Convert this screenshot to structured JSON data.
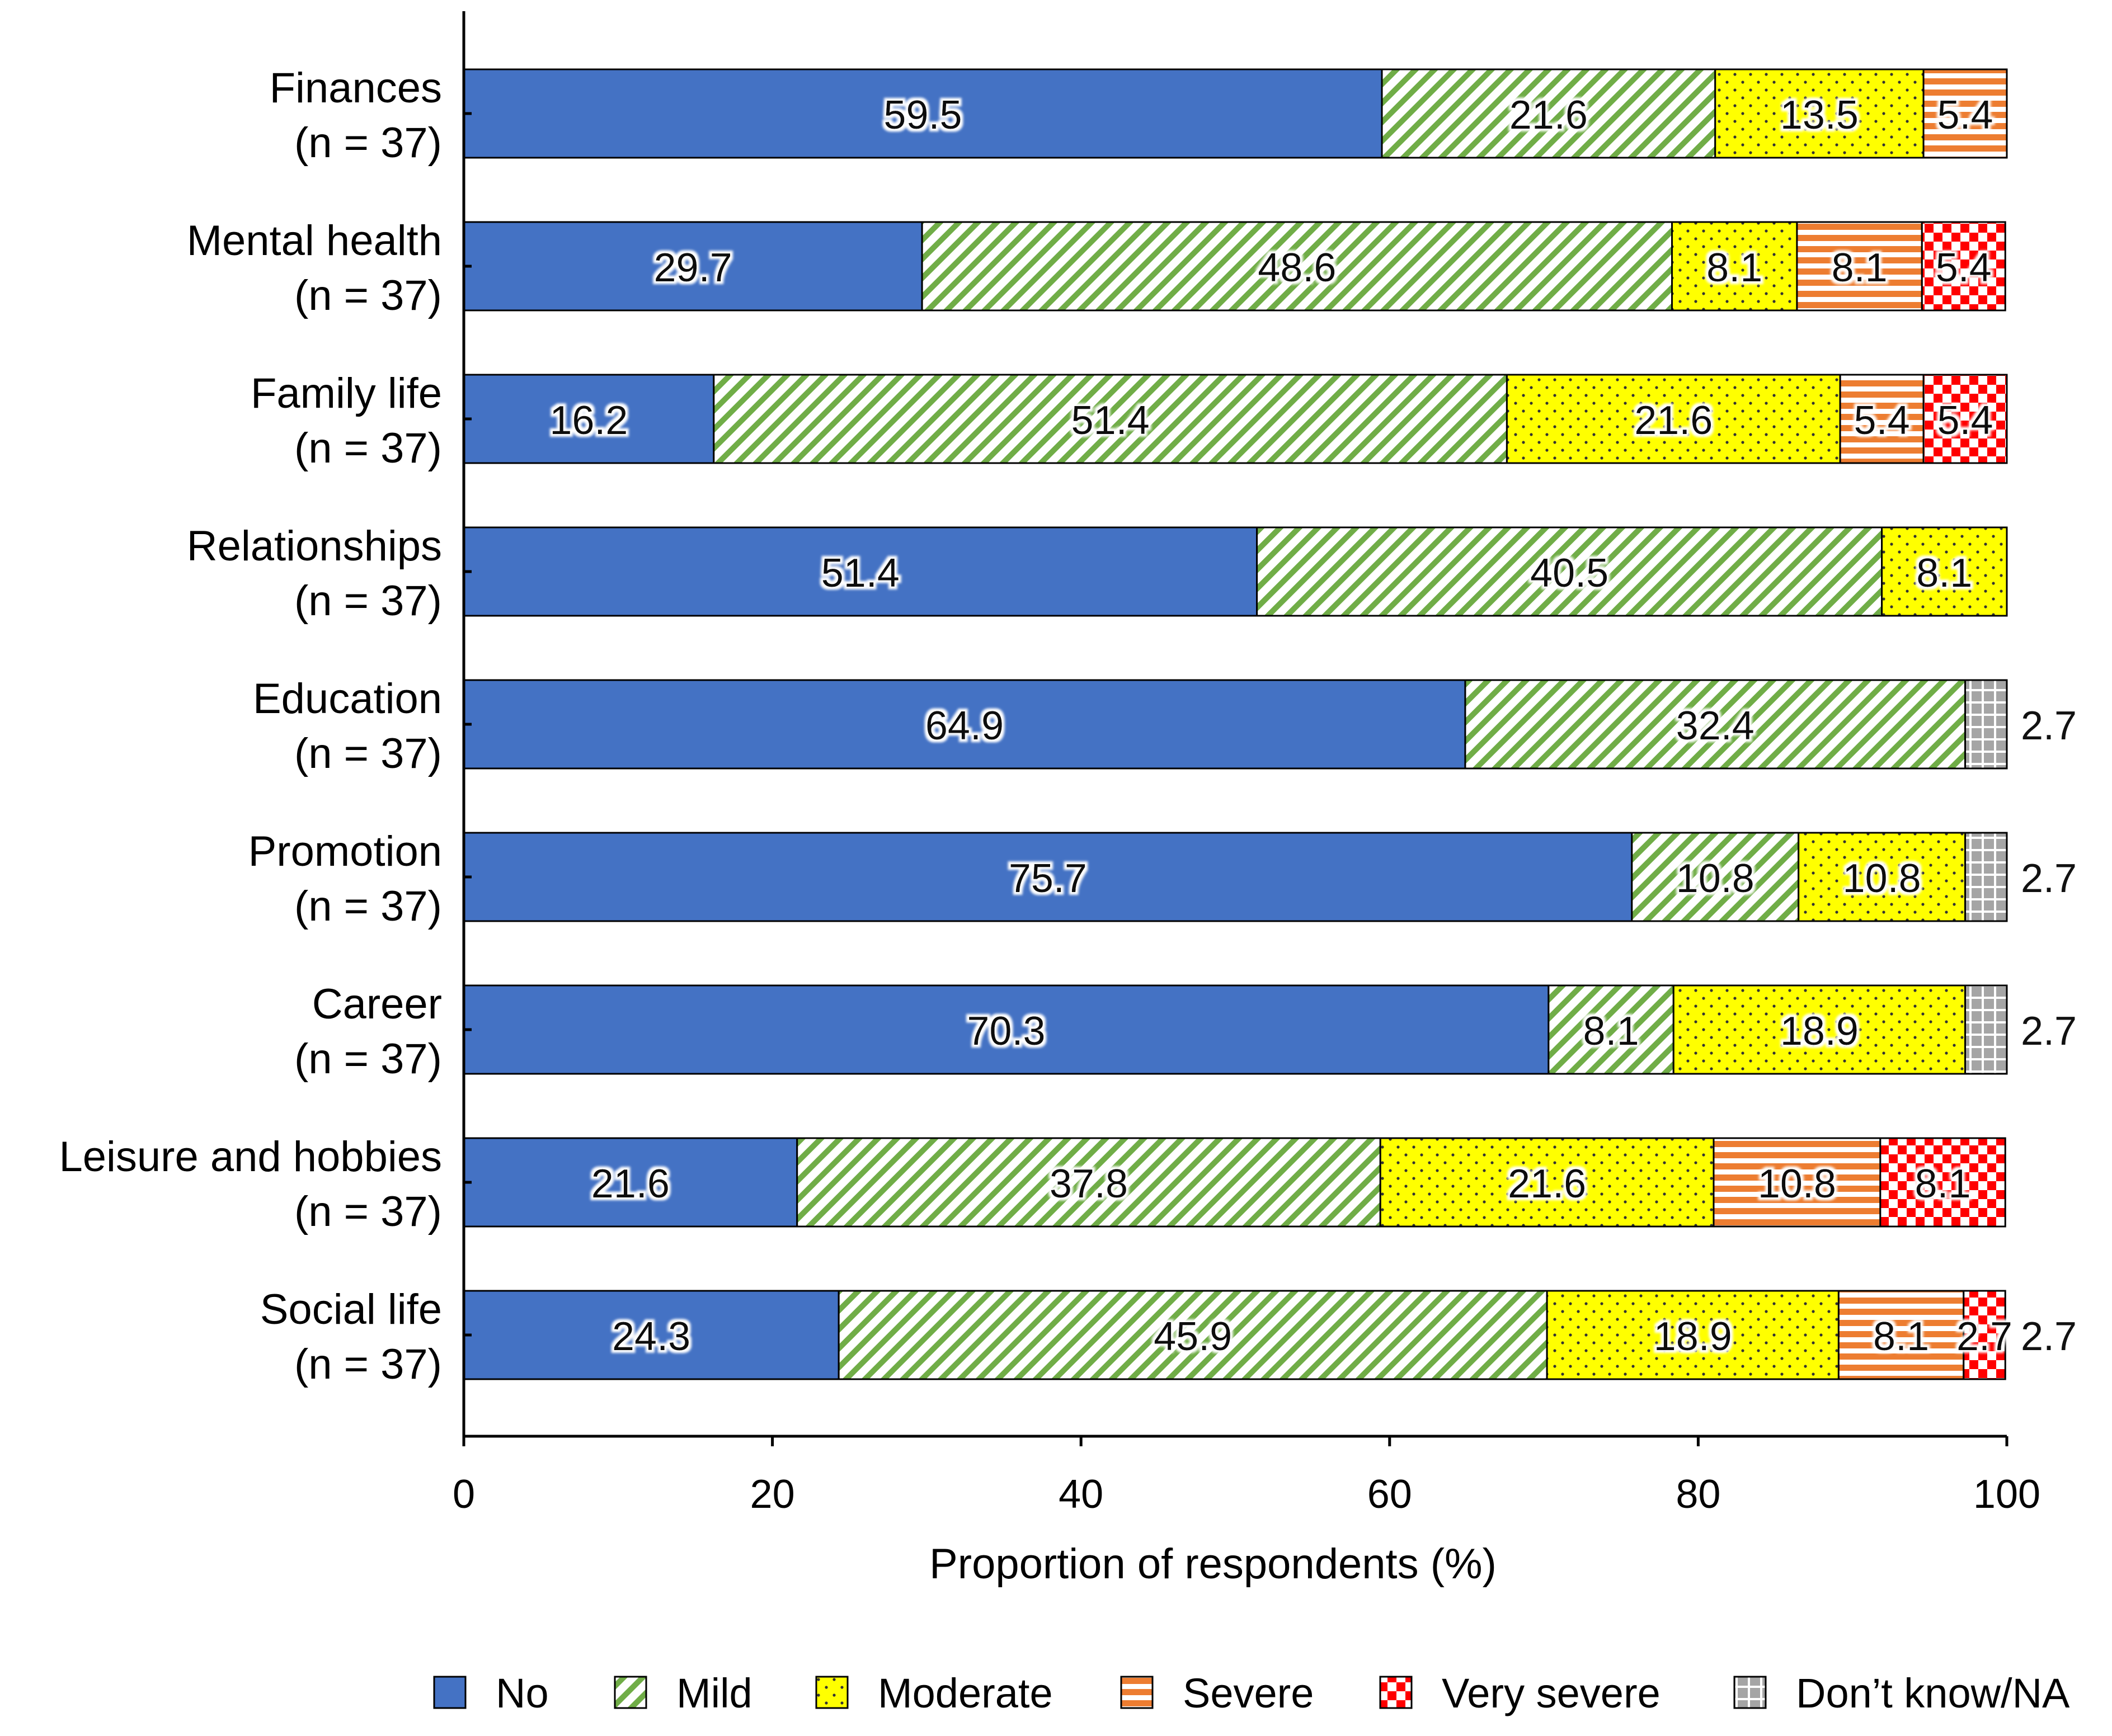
{
  "chart_data": {
    "type": "bar",
    "orientation": "horizontal",
    "stacked": true,
    "title": "",
    "xlabel": "Proportion of respondents (%)",
    "ylabel": "",
    "xlim": [
      0,
      100
    ],
    "xticks": [
      0,
      20,
      40,
      60,
      80,
      100
    ],
    "grid": false,
    "legend_position": "bottom",
    "categories": [
      {
        "label": "Finances",
        "n": "(n = 37)"
      },
      {
        "label": "Mental health",
        "n": "(n = 37)"
      },
      {
        "label": "Family life",
        "n": "(n = 37)"
      },
      {
        "label": "Relationships",
        "n": "(n = 37)"
      },
      {
        "label": "Education",
        "n": "(n = 37)"
      },
      {
        "label": "Promotion",
        "n": "(n = 37)"
      },
      {
        "label": "Career",
        "n": "(n = 37)"
      },
      {
        "label": "Leisure and hobbies",
        "n": "(n = 37)"
      },
      {
        "label": "Social life",
        "n": "(n = 37)"
      }
    ],
    "series": [
      {
        "name": "No",
        "color": "#4472c4",
        "pattern": "solid",
        "values": [
          59.5,
          29.7,
          16.2,
          51.4,
          64.9,
          75.7,
          70.3,
          21.6,
          24.3
        ]
      },
      {
        "name": "Mild",
        "color": "#70ad47",
        "pattern": "diagonal",
        "values": [
          21.6,
          48.6,
          51.4,
          40.5,
          32.4,
          10.8,
          8.1,
          37.8,
          45.9
        ]
      },
      {
        "name": "Moderate",
        "color": "#ffff00",
        "pattern": "dots",
        "values": [
          13.5,
          8.1,
          21.6,
          8.1,
          0,
          10.8,
          18.9,
          21.6,
          18.9
        ]
      },
      {
        "name": "Severe",
        "color": "#ed7d31",
        "pattern": "horizontal",
        "values": [
          5.4,
          8.1,
          5.4,
          0,
          0,
          0,
          0,
          10.8,
          8.1
        ]
      },
      {
        "name": "Very severe",
        "color": "#ff0000",
        "pattern": "checker",
        "values": [
          0,
          5.4,
          5.4,
          0,
          0,
          0,
          0,
          8.1,
          2.7
        ]
      },
      {
        "name": "Don’t know/NA",
        "color": "#a5a5a5",
        "pattern": "grid",
        "values": [
          0,
          0,
          0,
          0,
          2.7,
          2.7,
          2.7,
          0,
          0
        ]
      }
    ],
    "data_labels": [
      [
        "59.5",
        "21.6",
        "13.5",
        "5.4",
        "",
        ""
      ],
      [
        "29.7",
        "48.6",
        "8.1",
        "8.1",
        "5.4",
        ""
      ],
      [
        "16.2",
        "51.4",
        "21.6",
        "5.4",
        "5.4",
        ""
      ],
      [
        "51.4",
        "40.5",
        "8.1",
        "",
        "",
        ""
      ],
      [
        "64.9",
        "32.4",
        "",
        "",
        "",
        "2.7"
      ],
      [
        "75.7",
        "10.8",
        "10.8",
        "",
        "",
        "2.7"
      ],
      [
        "70.3",
        "8.1",
        "18.9",
        "",
        "",
        "2.7"
      ],
      [
        "21.6",
        "37.8",
        "21.6",
        "10.8",
        "8.1",
        ""
      ],
      [
        "24.3",
        "45.9",
        "18.9",
        "8.1",
        "2.7",
        ""
      ]
    ],
    "outside_labels": [
      "",
      "",
      "",
      "",
      "2.7",
      "2.7",
      "2.7",
      "",
      "2.7"
    ]
  }
}
